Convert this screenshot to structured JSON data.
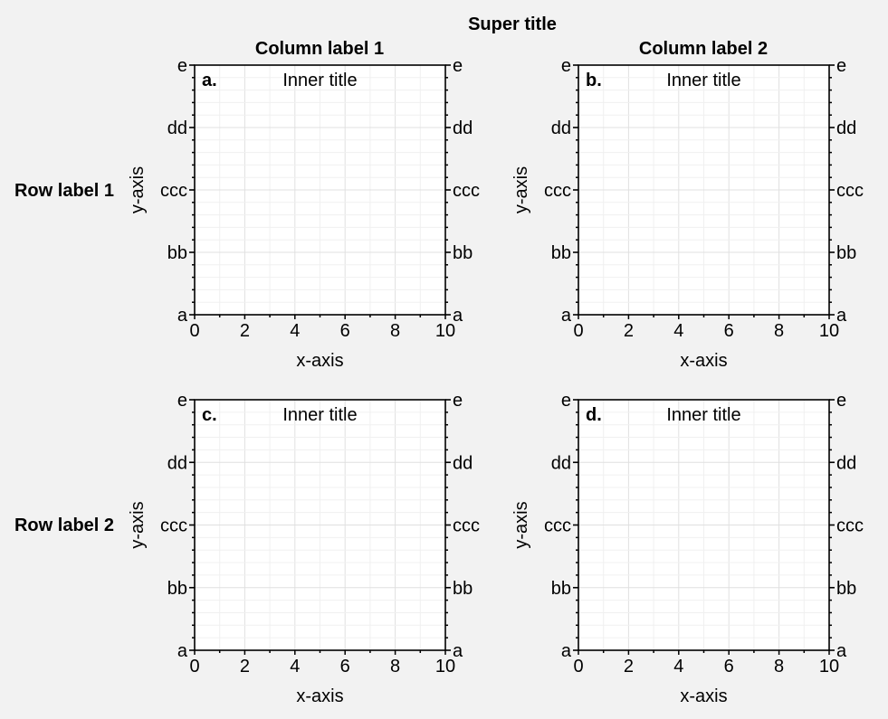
{
  "figure": {
    "suptitle": "Super title",
    "col_labels": [
      "Column label 1",
      "Column label 2"
    ],
    "row_labels": [
      "Row label 1",
      "Row label 2"
    ],
    "background": "#f2f2f2",
    "axes_facecolor": "#ffffff",
    "grid_color": "#e0e0e0"
  },
  "chart_data": [
    {
      "type": "line",
      "panel_label": "a.",
      "title": "Inner title",
      "xlabel": "x-axis",
      "ylabel": "y-axis",
      "xlim": [
        0,
        10
      ],
      "xticks": [
        0,
        2,
        4,
        6,
        8,
        10
      ],
      "yticklabels": [
        "a",
        "bb",
        "ccc",
        "dd",
        "e"
      ],
      "yticklabels_right": true,
      "grid": true,
      "series": []
    },
    {
      "type": "line",
      "panel_label": "b.",
      "title": "Inner title",
      "xlabel": "x-axis",
      "ylabel": "y-axis",
      "xlim": [
        0,
        10
      ],
      "xticks": [
        0,
        2,
        4,
        6,
        8,
        10
      ],
      "yticklabels": [
        "a",
        "bb",
        "ccc",
        "dd",
        "e"
      ],
      "yticklabels_right": true,
      "grid": true,
      "series": []
    },
    {
      "type": "line",
      "panel_label": "c.",
      "title": "Inner title",
      "xlabel": "x-axis",
      "ylabel": "y-axis",
      "xlim": [
        0,
        10
      ],
      "xticks": [
        0,
        2,
        4,
        6,
        8,
        10
      ],
      "yticklabels": [
        "a",
        "bb",
        "ccc",
        "dd",
        "e"
      ],
      "yticklabels_right": true,
      "grid": true,
      "series": []
    },
    {
      "type": "line",
      "panel_label": "d.",
      "title": "Inner title",
      "xlabel": "x-axis",
      "ylabel": "y-axis",
      "xlim": [
        0,
        10
      ],
      "xticks": [
        0,
        2,
        4,
        6,
        8,
        10
      ],
      "yticklabels": [
        "a",
        "bb",
        "ccc",
        "dd",
        "e"
      ],
      "yticklabels_right": true,
      "grid": true,
      "series": []
    }
  ]
}
